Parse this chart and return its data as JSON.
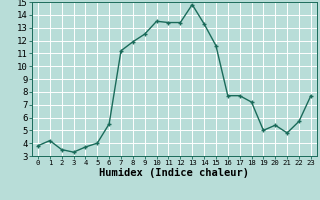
{
  "x": [
    0,
    1,
    2,
    3,
    4,
    5,
    6,
    7,
    8,
    9,
    10,
    11,
    12,
    13,
    14,
    15,
    16,
    17,
    18,
    19,
    20,
    21,
    22,
    23
  ],
  "y": [
    3.8,
    4.2,
    3.5,
    3.3,
    3.7,
    4.0,
    5.5,
    11.2,
    11.9,
    12.5,
    13.5,
    13.4,
    13.4,
    14.8,
    13.3,
    11.6,
    7.7,
    7.7,
    7.2,
    5.0,
    5.4,
    4.8,
    5.7,
    7.7
  ],
  "xlabel": "Humidex (Indice chaleur)",
  "line_color": "#1a6b5a",
  "bg_color": "#b8ddd8",
  "grid_color": "#ffffff",
  "xlim": [
    -0.5,
    23.5
  ],
  "ylim": [
    3,
    15
  ],
  "yticks": [
    3,
    4,
    5,
    6,
    7,
    8,
    9,
    10,
    11,
    12,
    13,
    14,
    15
  ],
  "xticks": [
    0,
    1,
    2,
    3,
    4,
    5,
    6,
    7,
    8,
    9,
    10,
    11,
    12,
    13,
    14,
    15,
    16,
    17,
    18,
    19,
    20,
    21,
    22,
    23
  ],
  "marker": "+",
  "marker_size": 3.5,
  "linewidth": 1.0,
  "xlabel_fontsize": 7.5,
  "tick_fontsize": 6.5
}
